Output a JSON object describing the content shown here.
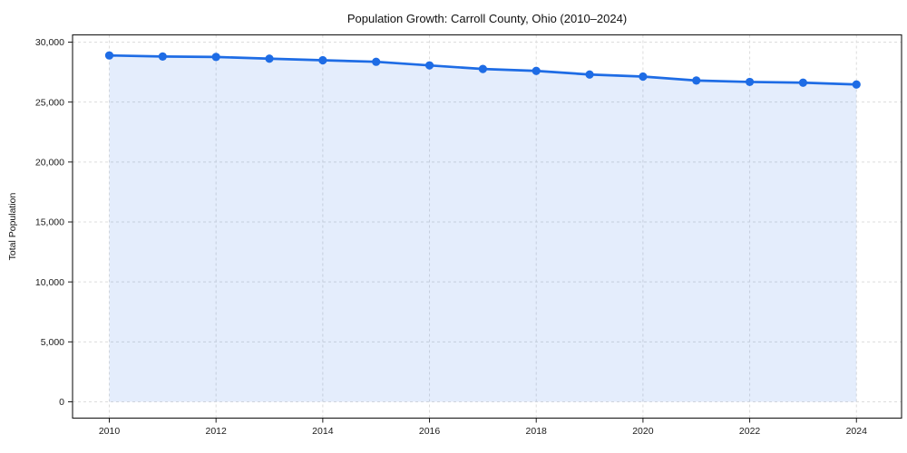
{
  "chart_data": {
    "type": "line",
    "title": "Population Growth: Carroll County, Ohio (2010–2024)",
    "xlabel": "",
    "ylabel": "Total Population",
    "x": [
      2010,
      2011,
      2012,
      2013,
      2014,
      2015,
      2016,
      2017,
      2018,
      2019,
      2020,
      2021,
      2022,
      2023,
      2024
    ],
    "series": [
      {
        "name": "Total Population",
        "values": [
          28890,
          28800,
          28760,
          28620,
          28490,
          28360,
          28060,
          27760,
          27600,
          27300,
          27130,
          26800,
          26680,
          26620,
          26470
        ]
      }
    ],
    "xticks": [
      2010,
      2012,
      2014,
      2016,
      2018,
      2020,
      2022,
      2024
    ],
    "yticks": [
      0,
      5000,
      10000,
      15000,
      20000,
      25000,
      30000
    ],
    "ytick_labels": [
      "0",
      "5,000",
      "10,000",
      "15,000",
      "20,000",
      "25,000",
      "30,000"
    ],
    "xlim": [
      2009.3,
      2024.7
    ],
    "ylim": [
      0,
      30000
    ],
    "grid": true,
    "legend_position": "none",
    "area_fill": true,
    "markers": true,
    "colors": {
      "line": "#1e6ce5",
      "fill": "rgba(30,108,229,0.12)",
      "grid": "#dcdcdc",
      "axis": "#1a1a1a",
      "text": "#1a1a1a",
      "background": "#ffffff"
    }
  }
}
